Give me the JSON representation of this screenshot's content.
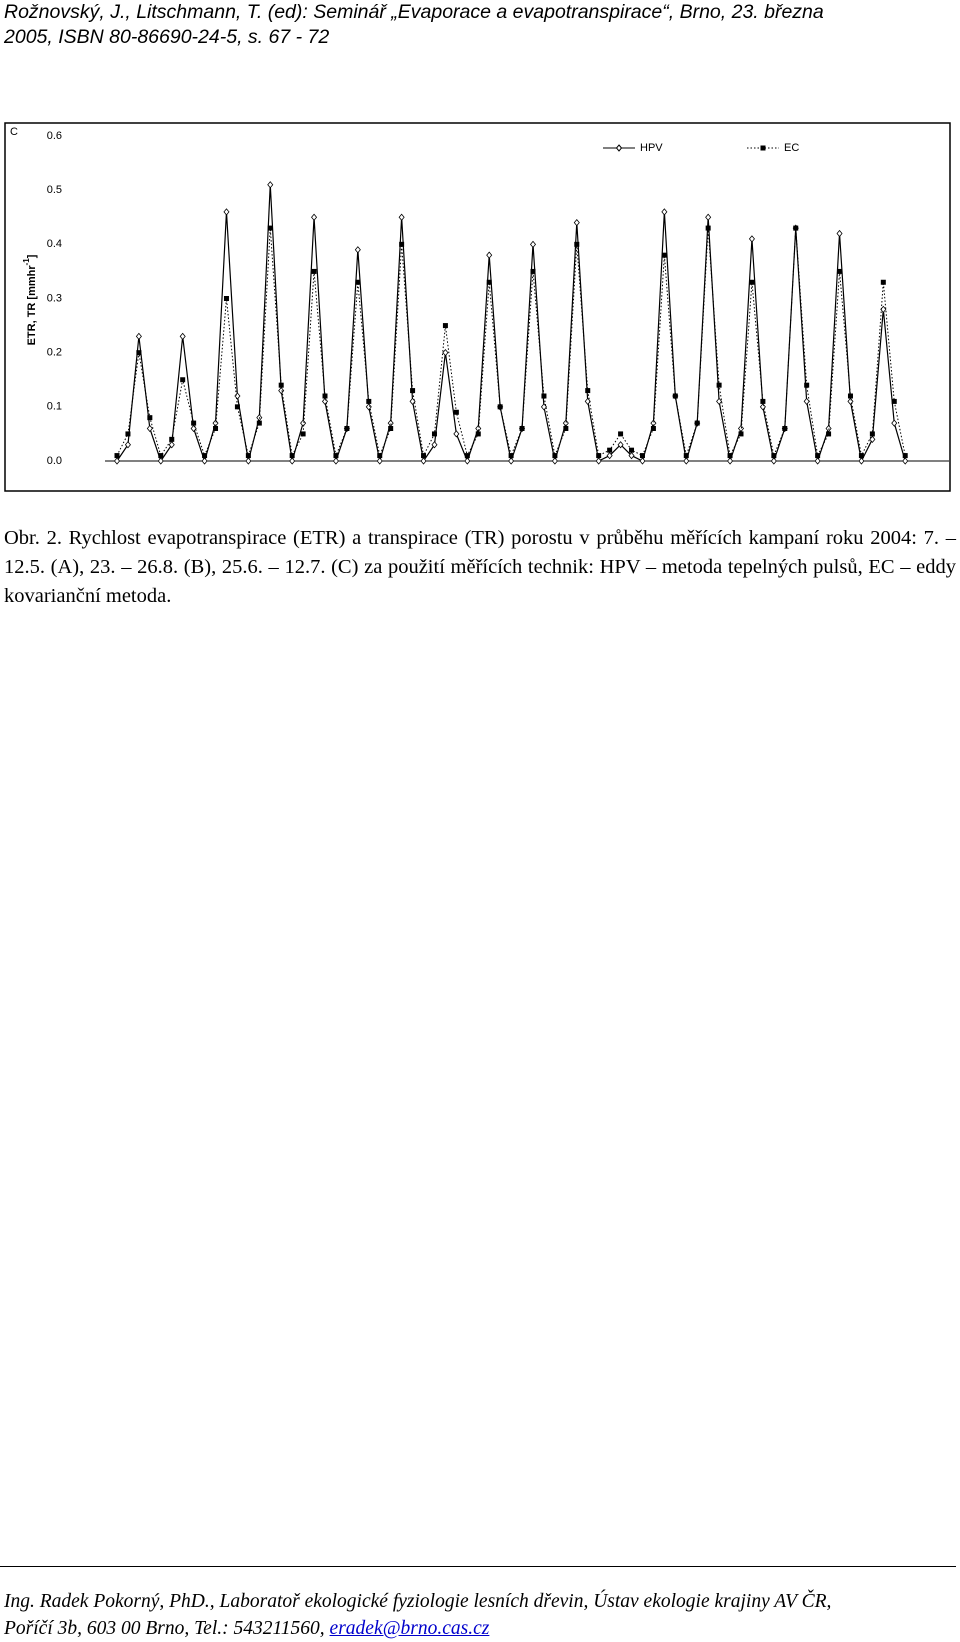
{
  "header": {
    "lines": [
      "Rožnovský, J., Litschmann, T. (ed): Seminář „Evaporace a evapotranspirace“, Brno, 23. března",
      "2005, ISBN 80-86690-24-5, s. 67 - 72"
    ]
  },
  "chart_data": {
    "type": "line",
    "panel_label": "C",
    "ylabel": "ETR, TR [mmhr",
    "ylabel_sup": "-1",
    "ylabel_end": "]",
    "x": [
      0,
      6,
      12,
      18,
      24,
      30,
      36,
      42,
      48,
      54,
      60,
      66,
      72,
      78,
      84,
      90,
      96,
      102,
      108,
      114,
      120,
      126,
      132,
      138,
      144,
      150,
      156,
      162,
      168,
      174,
      180,
      186,
      192,
      198,
      204,
      210,
      216,
      222,
      228,
      234,
      240,
      246,
      252,
      258,
      264,
      270,
      276,
      282,
      288,
      294,
      300,
      306,
      312,
      318,
      324,
      330,
      336,
      342,
      348,
      354,
      360,
      366,
      372,
      378,
      384,
      390,
      396,
      402,
      408,
      414,
      420,
      426,
      432
    ],
    "xlim": [
      0,
      456
    ],
    "ylim": [
      0,
      0.6
    ],
    "yticks": [
      {
        "value": 0,
        "label": "0.0"
      },
      0.1,
      0.2,
      0.3,
      0.4,
      0.5,
      0.6
    ],
    "legend": "top-right",
    "series": [
      {
        "name": "HPV",
        "color": "#000000",
        "line_style": "solid",
        "marker": "diamond",
        "values": [
          0,
          0.03,
          0.23,
          0.06,
          0,
          0.03,
          0.23,
          0.06,
          0,
          0.07,
          0.46,
          0.12,
          0,
          0.08,
          0.51,
          0.13,
          0,
          0.07,
          0.45,
          0.11,
          0,
          0.06,
          0.39,
          0.1,
          0,
          0.07,
          0.45,
          0.11,
          0,
          0.03,
          0.2,
          0.05,
          0,
          0.06,
          0.38,
          0.1,
          0,
          0.06,
          0.4,
          0.1,
          0,
          0.07,
          0.44,
          0.11,
          0,
          0.01,
          0.03,
          0.01,
          0,
          0.07,
          0.46,
          0.12,
          0,
          0.07,
          0.45,
          0.11,
          0,
          0.06,
          0.41,
          0.1,
          0,
          0.06,
          0.43,
          0.11,
          0,
          0.06,
          0.42,
          0.11,
          0,
          0.04,
          0.28,
          0.07,
          0
        ]
      },
      {
        "name": "EC",
        "color": "#000000",
        "line_style": "dotted",
        "marker": "square",
        "values": [
          0.01,
          0.05,
          0.2,
          0.08,
          0.01,
          0.04,
          0.15,
          0.07,
          0.01,
          0.06,
          0.3,
          0.1,
          0.01,
          0.07,
          0.43,
          0.14,
          0.01,
          0.05,
          0.35,
          0.12,
          0.01,
          0.06,
          0.33,
          0.11,
          0.01,
          0.06,
          0.4,
          0.13,
          0.01,
          0.05,
          0.25,
          0.09,
          0.01,
          0.05,
          0.33,
          0.1,
          0.01,
          0.06,
          0.35,
          0.12,
          0.01,
          0.06,
          0.4,
          0.13,
          0.01,
          0.02,
          0.05,
          0.02,
          0.01,
          0.06,
          0.38,
          0.12,
          0.01,
          0.07,
          0.43,
          0.14,
          0.01,
          0.05,
          0.33,
          0.11,
          0.01,
          0.06,
          0.43,
          0.14,
          0.01,
          0.05,
          0.35,
          0.12,
          0.01,
          0.05,
          0.33,
          0.11,
          0.01
        ]
      }
    ]
  },
  "caption": "Obr. 2. Rychlost evapotranspirace (ETR) a transpirace (TR) porostu v průběhu měřících kampaní roku 2004: 7. – 12.5. (A), 23. – 26.8. (B), 25.6. – 12.7. (C) za použití měřících technik: HPV – metoda tepelných pulsů, EC – eddy kovarianční metoda.",
  "footer": {
    "line1": "Ing. Radek Pokorný, PhD., Laboratoř ekologické fyziologie lesních dřevin, Ústav ekologie krajiny AV ČR,",
    "line2": "Poříčí 3b, 603 00 Brno, Tel.: 543211560, ",
    "email": "eradek@brno.cas.cz"
  }
}
